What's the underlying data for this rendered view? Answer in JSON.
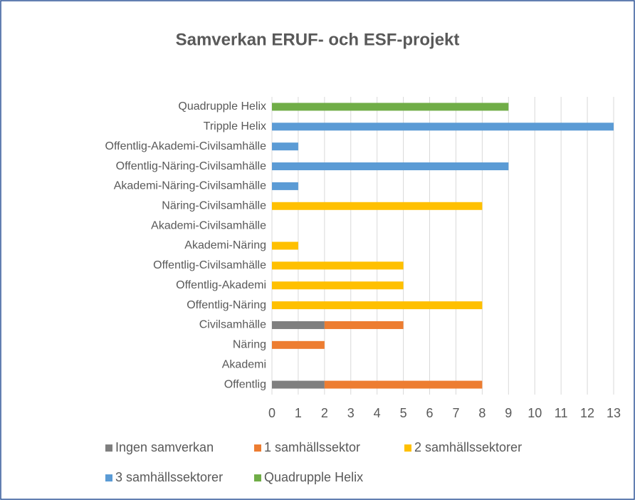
{
  "chart_data": {
    "type": "stacked-bar",
    "orientation": "horizontal",
    "title": "Samverkan ERUF- och ESF-projekt",
    "categories": [
      "Quadrupple Helix",
      "Tripple Helix",
      "Offentlig-Akademi-Civilsamhälle",
      "Offentlig-Näring-Civilsamhälle",
      "Akademi-Näring-Civilsamhälle",
      "Näring-Civilsamhälle",
      "Akademi-Civilsamhälle",
      "Akademi-Näring",
      "Offentlig-Civilsamhälle",
      "Offentlig-Akademi",
      "Offentlig-Näring",
      "Civilsamhälle",
      "Näring",
      "Akademi",
      "Offentlig"
    ],
    "series": [
      {
        "name": "Ingen samverkan",
        "color": "#7f7f7f",
        "values": [
          null,
          null,
          null,
          null,
          null,
          null,
          null,
          null,
          null,
          null,
          null,
          2,
          null,
          null,
          2
        ]
      },
      {
        "name": "1 samhällssektor",
        "color": "#ed7d31",
        "values": [
          null,
          null,
          null,
          null,
          null,
          null,
          null,
          null,
          null,
          null,
          null,
          3,
          2,
          null,
          6
        ]
      },
      {
        "name": "2 samhällssektorer",
        "color": "#ffc000",
        "values": [
          null,
          null,
          null,
          null,
          null,
          8,
          null,
          1,
          5,
          5,
          8,
          null,
          null,
          null,
          null
        ]
      },
      {
        "name": "3 samhällssektorer",
        "color": "#5b9bd5",
        "values": [
          null,
          13,
          1,
          9,
          1,
          null,
          null,
          null,
          null,
          null,
          null,
          null,
          null,
          null,
          null
        ]
      },
      {
        "name": "Quadrupple Helix",
        "color": "#70ad47",
        "values": [
          9,
          null,
          null,
          null,
          null,
          null,
          null,
          null,
          null,
          null,
          null,
          null,
          null,
          null,
          null
        ]
      }
    ],
    "xlim": [
      0,
      13
    ],
    "xticks": [
      0,
      1,
      2,
      3,
      4,
      5,
      6,
      7,
      8,
      9,
      10,
      11,
      12,
      13
    ],
    "grid": true,
    "legend": "bottom"
  }
}
